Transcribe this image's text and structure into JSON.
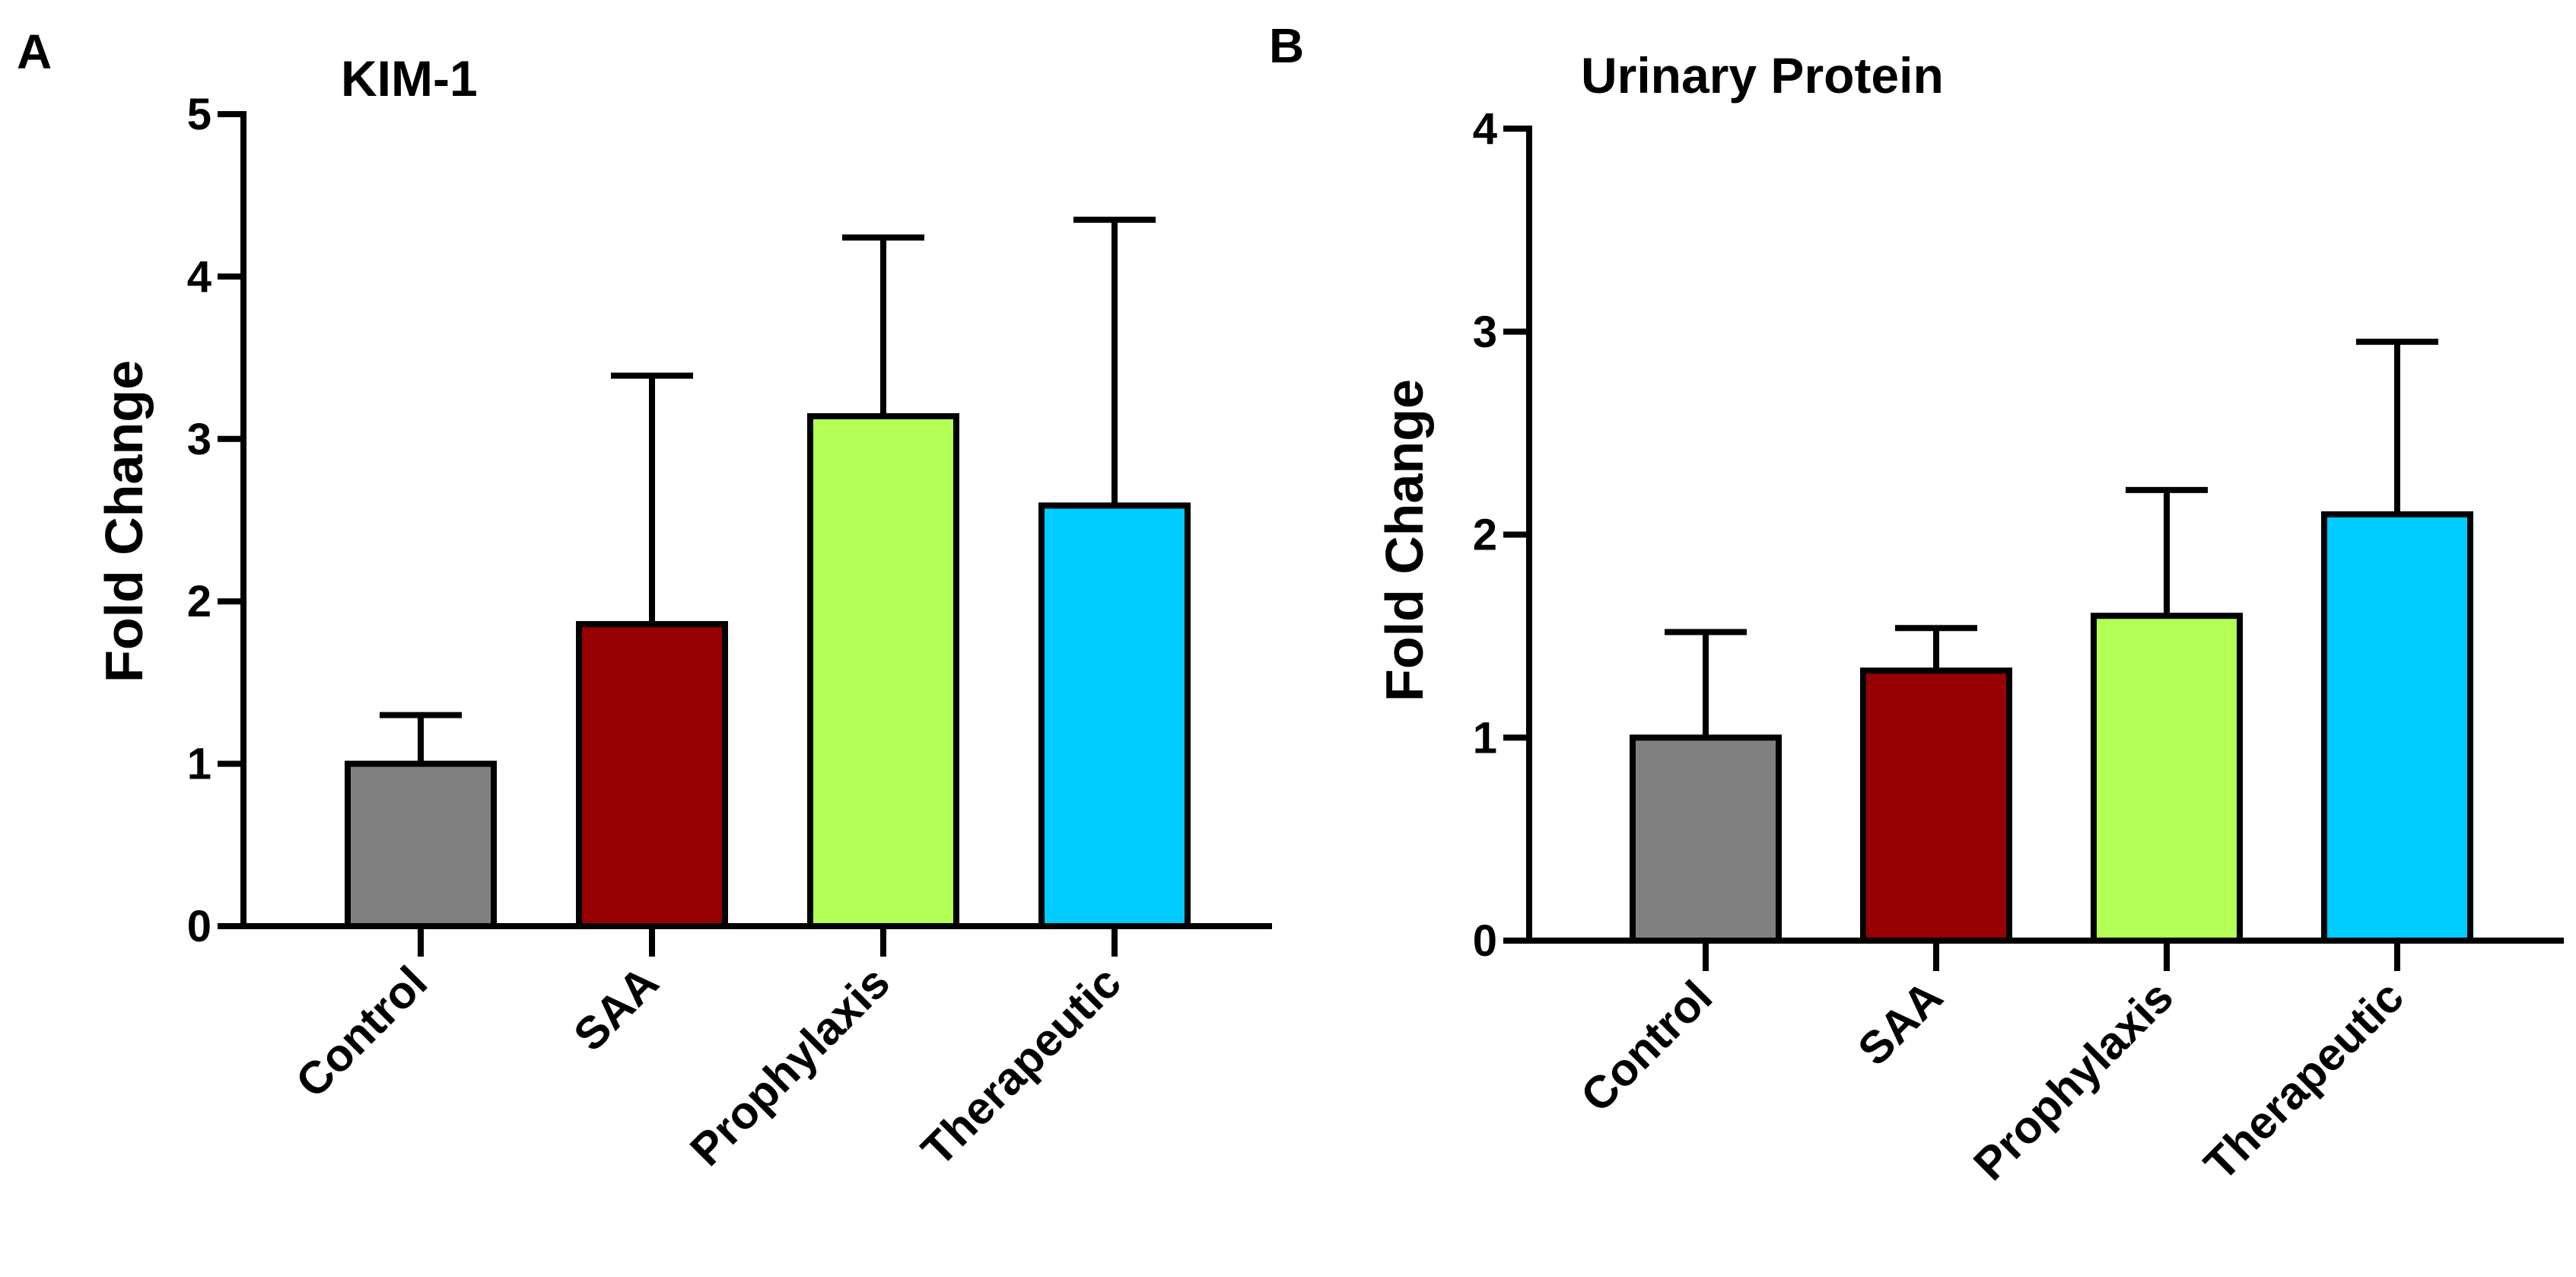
{
  "figure": {
    "panels": [
      "A",
      "B"
    ]
  },
  "chart_data": [
    {
      "type": "bar",
      "panel": "A",
      "title": "KIM-1",
      "xlabel": "",
      "ylabel": "Fold Change",
      "ylim": [
        0,
        5
      ],
      "yticks": [
        0,
        1,
        2,
        3,
        4,
        5
      ],
      "grid": false,
      "categories": [
        "Control",
        "SAA",
        "Prophylaxis",
        "Therapeutic"
      ],
      "values": [
        1.0,
        1.86,
        3.14,
        2.59
      ],
      "error_upper": [
        1.3,
        3.39,
        4.24,
        4.35
      ],
      "colors": [
        "#808080",
        "#960000",
        "#b2ff55",
        "#00ccff"
      ]
    },
    {
      "type": "bar",
      "panel": "B",
      "title": "Urinary Protein",
      "xlabel": "",
      "ylabel": "Fold Change",
      "ylim": [
        0,
        4
      ],
      "yticks": [
        0,
        1,
        2,
        3,
        4
      ],
      "grid": false,
      "categories": [
        "Control",
        "SAA",
        "Prophylaxis",
        "Therapeutic"
      ],
      "values": [
        1.0,
        1.33,
        1.6,
        2.1
      ],
      "error_upper": [
        1.52,
        1.54,
        2.22,
        2.95
      ],
      "colors": [
        "#808080",
        "#960000",
        "#b2ff55",
        "#00ccff"
      ]
    }
  ]
}
